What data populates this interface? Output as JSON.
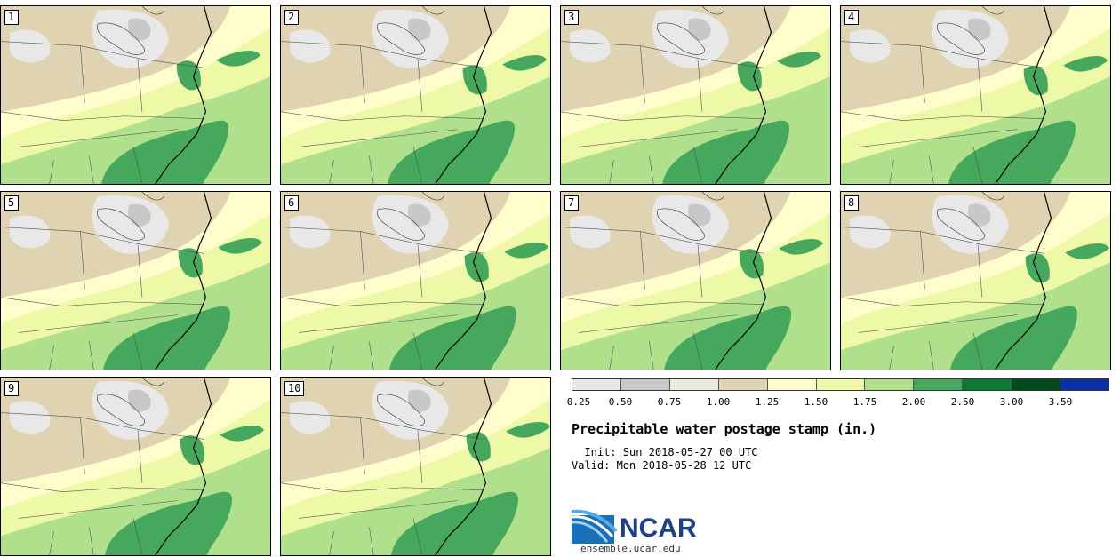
{
  "panels": [
    {
      "label": "1"
    },
    {
      "label": "2"
    },
    {
      "label": "3"
    },
    {
      "label": "4"
    },
    {
      "label": "5"
    },
    {
      "label": "6"
    },
    {
      "label": "7"
    },
    {
      "label": "8"
    },
    {
      "label": "9"
    },
    {
      "label": "10"
    }
  ],
  "colorbar": {
    "colors": [
      "#e8e8e8",
      "#c8c8c8",
      "#ecebe2",
      "#e0d3b2",
      "#fffdcc",
      "#eef9a8",
      "#b0e08c",
      "#45a85c",
      "#0a7a35",
      "#024b1e",
      "#0a2fa8"
    ],
    "ticks": [
      "0.25",
      "0.50",
      "0.75",
      "1.00",
      "1.25",
      "1.50",
      "1.75",
      "2.00",
      "2.50",
      "3.00",
      "3.50"
    ]
  },
  "title": "Precipitable water postage stamp (in.)",
  "init_line": "  Init: Sun 2018-05-27 00 UTC",
  "valid_line": "Valid: Mon 2018-05-28 12 UTC",
  "logo_text": "NCAR",
  "url": "ensemble.ucar.edu"
}
